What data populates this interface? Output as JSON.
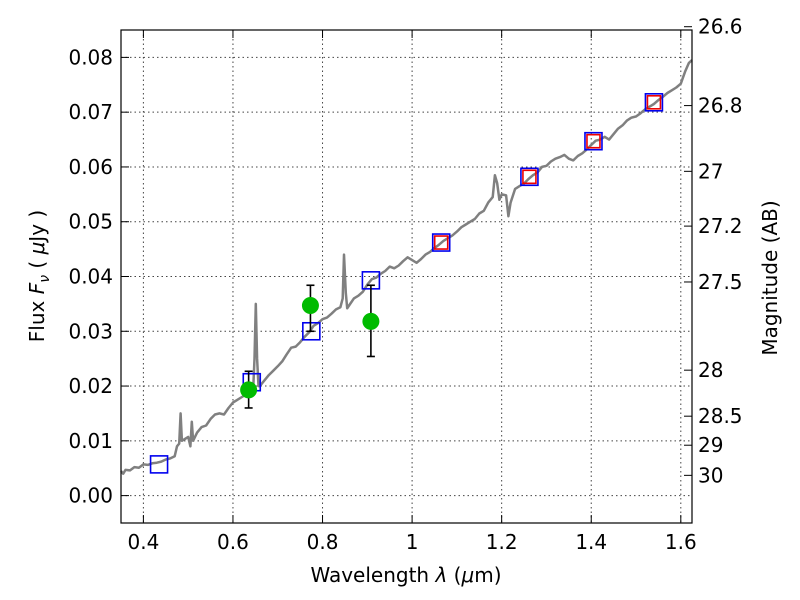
{
  "chart_data": {
    "type": "scatter",
    "xlabel": "Wavelength",
    "xlabel_symbol": "λ",
    "xlabel_unit_open": " (",
    "xlabel_mu": "μ",
    "xlabel_unit_rest": "m)",
    "ylabel": "Flux",
    "ylabel_symbol": "F",
    "ylabel_subscript": "ν",
    "ylabel_unit_open": "  ( ",
    "ylabel_mu": "μ",
    "ylabel_unit_rest": "Jy )",
    "y2label": "Magnitude (AB)",
    "xlim": [
      0.35,
      1.625
    ],
    "ylim": [
      -0.005,
      0.085
    ],
    "grid": true,
    "x_ticks": [
      {
        "value": 0.4,
        "label": "0.4"
      },
      {
        "value": 0.6,
        "label": "0.6"
      },
      {
        "value": 0.8,
        "label": "0.8"
      },
      {
        "value": 1.0,
        "label": "1"
      },
      {
        "value": 1.2,
        "label": "1.2"
      },
      {
        "value": 1.4,
        "label": "1.4"
      },
      {
        "value": 1.6,
        "label": "1.6"
      }
    ],
    "y_ticks": [
      {
        "value": 0.0,
        "label": "0.00"
      },
      {
        "value": 0.01,
        "label": "0.01"
      },
      {
        "value": 0.02,
        "label": "0.02"
      },
      {
        "value": 0.03,
        "label": "0.03"
      },
      {
        "value": 0.04,
        "label": "0.04"
      },
      {
        "value": 0.05,
        "label": "0.05"
      },
      {
        "value": 0.06,
        "label": "0.06"
      },
      {
        "value": 0.07,
        "label": "0.07"
      },
      {
        "value": 0.08,
        "label": "0.08"
      }
    ],
    "y2_ticks": [
      {
        "flux": 0.0856,
        "label": "26.6"
      },
      {
        "flux": 0.0712,
        "label": "26.8"
      },
      {
        "flux": 0.0592,
        "label": "27"
      },
      {
        "flux": 0.0492,
        "label": "27.2"
      },
      {
        "flux": 0.039,
        "label": "27.5"
      },
      {
        "flux": 0.0229,
        "label": "28"
      },
      {
        "flux": 0.0145,
        "label": "28.5"
      },
      {
        "flux": 0.0092,
        "label": "29"
      },
      {
        "flux": 0.0037,
        "label": "30"
      }
    ],
    "series": [
      {
        "kind": "line",
        "color": "#808080",
        "points": [
          [
            0.35,
            0.0045
          ],
          [
            0.355,
            0.004
          ],
          [
            0.36,
            0.0047
          ],
          [
            0.37,
            0.0046
          ],
          [
            0.38,
            0.0052
          ],
          [
            0.39,
            0.0051
          ],
          [
            0.4,
            0.0057
          ],
          [
            0.41,
            0.0056
          ],
          [
            0.42,
            0.0059
          ],
          [
            0.43,
            0.006
          ],
          [
            0.44,
            0.0062
          ],
          [
            0.45,
            0.0066
          ],
          [
            0.46,
            0.0068
          ],
          [
            0.47,
            0.0072
          ],
          [
            0.475,
            0.009
          ],
          [
            0.48,
            0.0095
          ],
          [
            0.483,
            0.015
          ],
          [
            0.486,
            0.01
          ],
          [
            0.49,
            0.0102
          ],
          [
            0.5,
            0.0107
          ],
          [
            0.505,
            0.009
          ],
          [
            0.508,
            0.0135
          ],
          [
            0.511,
            0.01
          ],
          [
            0.52,
            0.0115
          ],
          [
            0.53,
            0.0125
          ],
          [
            0.54,
            0.0128
          ],
          [
            0.55,
            0.014
          ],
          [
            0.56,
            0.0148
          ],
          [
            0.57,
            0.015
          ],
          [
            0.58,
            0.0148
          ],
          [
            0.59,
            0.016
          ],
          [
            0.6,
            0.017
          ],
          [
            0.61,
            0.0175
          ],
          [
            0.62,
            0.018
          ],
          [
            0.63,
            0.0185
          ],
          [
            0.64,
            0.0195
          ],
          [
            0.645,
            0.019
          ],
          [
            0.648,
            0.025
          ],
          [
            0.651,
            0.035
          ],
          [
            0.654,
            0.025
          ],
          [
            0.657,
            0.02
          ],
          [
            0.66,
            0.02
          ],
          [
            0.67,
            0.021
          ],
          [
            0.68,
            0.022
          ],
          [
            0.69,
            0.0228
          ],
          [
            0.7,
            0.0236
          ],
          [
            0.71,
            0.0245
          ],
          [
            0.72,
            0.0258
          ],
          [
            0.73,
            0.027
          ],
          [
            0.74,
            0.0272
          ],
          [
            0.75,
            0.028
          ],
          [
            0.76,
            0.029
          ],
          [
            0.77,
            0.0298
          ],
          [
            0.78,
            0.031
          ],
          [
            0.79,
            0.0315
          ],
          [
            0.8,
            0.0322
          ],
          [
            0.81,
            0.0325
          ],
          [
            0.82,
            0.0332
          ],
          [
            0.83,
            0.034
          ],
          [
            0.84,
            0.0344
          ],
          [
            0.845,
            0.036
          ],
          [
            0.848,
            0.044
          ],
          [
            0.852,
            0.037
          ],
          [
            0.855,
            0.0342
          ],
          [
            0.86,
            0.0348
          ],
          [
            0.87,
            0.036
          ],
          [
            0.88,
            0.0365
          ],
          [
            0.89,
            0.0372
          ],
          [
            0.9,
            0.0385
          ],
          [
            0.91,
            0.0395
          ],
          [
            0.92,
            0.0398
          ],
          [
            0.93,
            0.0405
          ],
          [
            0.94,
            0.041
          ],
          [
            0.95,
            0.0418
          ],
          [
            0.96,
            0.0415
          ],
          [
            0.97,
            0.042
          ],
          [
            0.98,
            0.0428
          ],
          [
            0.99,
            0.0435
          ],
          [
            1.0,
            0.043
          ],
          [
            1.01,
            0.0425
          ],
          [
            1.02,
            0.0432
          ],
          [
            1.03,
            0.044
          ],
          [
            1.04,
            0.0445
          ],
          [
            1.05,
            0.0452
          ],
          [
            1.06,
            0.0458
          ],
          [
            1.07,
            0.0465
          ],
          [
            1.08,
            0.047
          ],
          [
            1.09,
            0.0475
          ],
          [
            1.1,
            0.0482
          ],
          [
            1.11,
            0.049
          ],
          [
            1.12,
            0.0495
          ],
          [
            1.13,
            0.05
          ],
          [
            1.14,
            0.0505
          ],
          [
            1.15,
            0.0515
          ],
          [
            1.16,
            0.052
          ],
          [
            1.17,
            0.0535
          ],
          [
            1.18,
            0.0545
          ],
          [
            1.185,
            0.0585
          ],
          [
            1.19,
            0.057
          ],
          [
            1.195,
            0.054
          ],
          [
            1.2,
            0.055
          ],
          [
            1.21,
            0.0548
          ],
          [
            1.215,
            0.051
          ],
          [
            1.22,
            0.0535
          ],
          [
            1.23,
            0.056
          ],
          [
            1.24,
            0.0565
          ],
          [
            1.25,
            0.057
          ],
          [
            1.26,
            0.0578
          ],
          [
            1.27,
            0.0585
          ],
          [
            1.28,
            0.059
          ],
          [
            1.29,
            0.06
          ],
          [
            1.3,
            0.0602
          ],
          [
            1.31,
            0.061
          ],
          [
            1.32,
            0.0615
          ],
          [
            1.33,
            0.0618
          ],
          [
            1.34,
            0.0622
          ],
          [
            1.35,
            0.0615
          ],
          [
            1.36,
            0.0612
          ],
          [
            1.37,
            0.062
          ],
          [
            1.38,
            0.0625
          ],
          [
            1.39,
            0.0632
          ],
          [
            1.4,
            0.064
          ],
          [
            1.41,
            0.0648
          ],
          [
            1.42,
            0.065
          ],
          [
            1.43,
            0.0655
          ],
          [
            1.44,
            0.065
          ],
          [
            1.45,
            0.066
          ],
          [
            1.46,
            0.067
          ],
          [
            1.47,
            0.0676
          ],
          [
            1.48,
            0.0685
          ],
          [
            1.49,
            0.069
          ],
          [
            1.5,
            0.0692
          ],
          [
            1.51,
            0.0698
          ],
          [
            1.52,
            0.0705
          ],
          [
            1.53,
            0.071
          ],
          [
            1.54,
            0.0715
          ],
          [
            1.55,
            0.0722
          ],
          [
            1.56,
            0.0728
          ],
          [
            1.57,
            0.0735
          ],
          [
            1.58,
            0.074
          ],
          [
            1.59,
            0.0745
          ],
          [
            1.6,
            0.0752
          ],
          [
            1.61,
            0.0775
          ],
          [
            1.618,
            0.079
          ],
          [
            1.625,
            0.0795
          ]
        ]
      },
      {
        "kind": "open-square",
        "color": "#0000ee",
        "points": [
          [
            0.435,
            0.0057
          ],
          [
            0.642,
            0.0207
          ],
          [
            0.775,
            0.03
          ],
          [
            0.908,
            0.0393
          ],
          [
            1.065,
            0.0462
          ],
          [
            1.262,
            0.0582
          ],
          [
            1.405,
            0.0647
          ],
          [
            1.54,
            0.0718
          ]
        ]
      },
      {
        "kind": "open-square",
        "color": "#ee0000",
        "points": [
          [
            1.065,
            0.0462
          ],
          [
            1.262,
            0.0582
          ],
          [
            1.405,
            0.0647
          ],
          [
            1.54,
            0.0718
          ]
        ]
      },
      {
        "kind": "filled-circle",
        "color": "#00bb00",
        "points": [
          {
            "x": 0.635,
            "y": 0.0193,
            "ylow": 0.016,
            "yhigh": 0.0227
          },
          {
            "x": 0.773,
            "y": 0.0347,
            "ylow": 0.03,
            "yhigh": 0.0384
          },
          {
            "x": 0.908,
            "y": 0.0318,
            "ylow": 0.0254,
            "yhigh": 0.0384
          }
        ]
      }
    ],
    "line_color": "#808080"
  }
}
